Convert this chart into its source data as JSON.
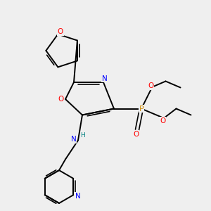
{
  "bg_color": "#efefef",
  "colors": {
    "bond": "#000000",
    "O": "#ff0000",
    "N": "#0000cc",
    "P": "#cc8800",
    "H": "#008080"
  }
}
